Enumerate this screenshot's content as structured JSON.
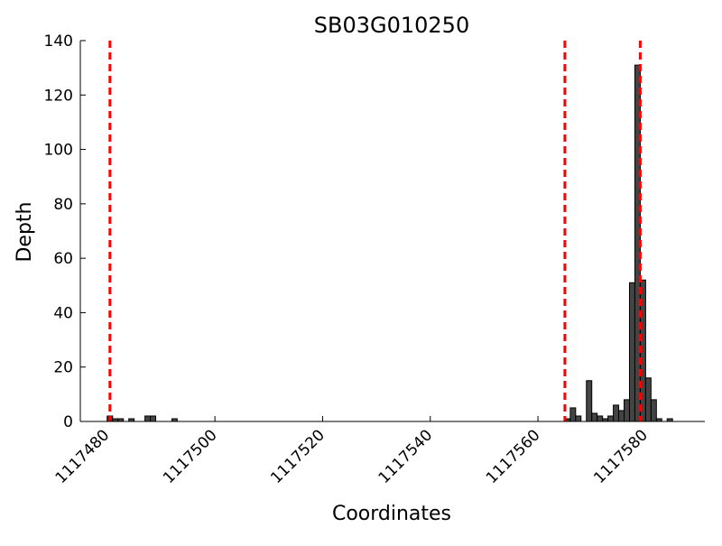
{
  "chart_data": {
    "type": "bar",
    "title": "SB03G010250",
    "xlabel": "Coordinates",
    "ylabel": "Depth",
    "xlim": [
      1117475,
      1117591
    ],
    "ylim": [
      0,
      140
    ],
    "bar_width": 1,
    "x_ticks": [
      1117480,
      1117500,
      1117520,
      1117540,
      1117560,
      1117580
    ],
    "x_tick_labels": [
      "1117480",
      "1117500",
      "1117520",
      "1117540",
      "1117560",
      "1117580"
    ],
    "y_ticks": [
      0,
      20,
      40,
      60,
      80,
      100,
      120,
      140
    ],
    "y_tick_labels": [
      "0",
      "20",
      "40",
      "60",
      "80",
      "100",
      "120",
      "140"
    ],
    "series": [
      {
        "color": "#444444",
        "x": [
          1117480,
          1117481,
          1117482,
          1117484,
          1117487,
          1117488,
          1117492,
          1117565,
          1117566,
          1117567,
          1117569,
          1117570,
          1117571,
          1117572,
          1117573,
          1117574,
          1117575,
          1117576,
          1117577,
          1117578,
          1117579,
          1117580,
          1117581,
          1117582,
          1117584
        ],
        "values": [
          2,
          1,
          1,
          1,
          2,
          2,
          1,
          1,
          5,
          2,
          15,
          3,
          2,
          1,
          2,
          6,
          4,
          8,
          51,
          131,
          52,
          16,
          8,
          1,
          1
        ]
      }
    ],
    "vlines": {
      "color": "#ff0000",
      "style": "dashed",
      "x": [
        1117480.5,
        1117565,
        1117579
      ]
    },
    "grid": false
  }
}
